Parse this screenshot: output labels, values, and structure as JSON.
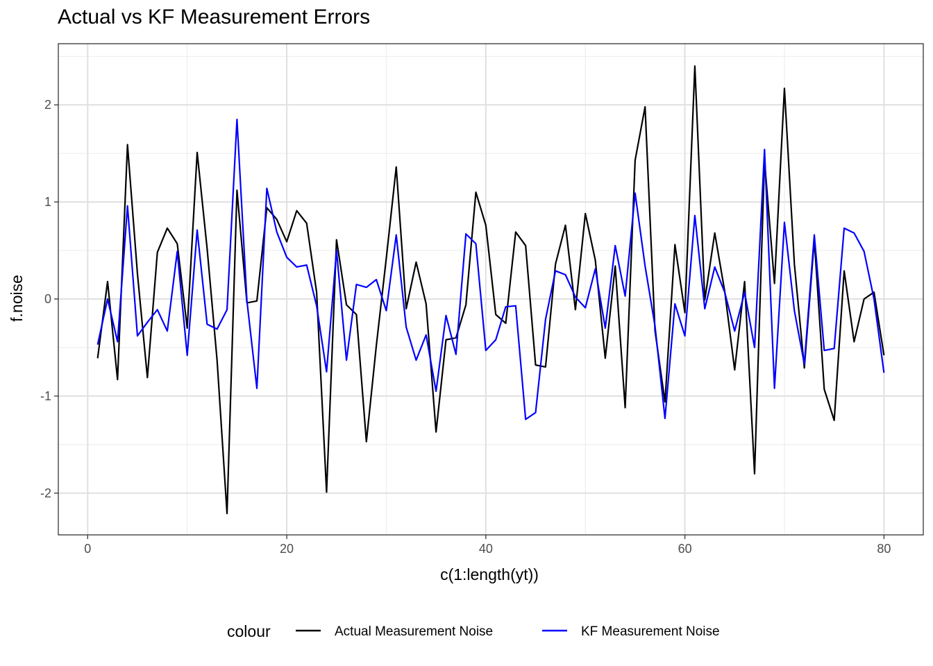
{
  "chart_data": {
    "type": "line",
    "title": "Actual vs KF Measurement Errors",
    "xlabel": "c(1:length(yt))",
    "ylabel": "f.noise",
    "xlim": [
      -2.95,
      83.95
    ],
    "ylim": [
      -2.43,
      2.63
    ],
    "x_ticks": [
      0,
      20,
      40,
      60,
      80
    ],
    "x_tick_labels": [
      "0",
      "20",
      "40",
      "60",
      "80"
    ],
    "y_ticks": [
      -2,
      -1,
      0,
      1,
      2
    ],
    "y_tick_labels": [
      "-2",
      "-1",
      "0",
      "1",
      "2"
    ],
    "grid": true,
    "legend_title": "colour",
    "legend_position": "bottom",
    "x": [
      1,
      2,
      3,
      4,
      5,
      6,
      7,
      8,
      9,
      10,
      11,
      12,
      13,
      14,
      15,
      16,
      17,
      18,
      19,
      20,
      21,
      22,
      23,
      24,
      25,
      26,
      27,
      28,
      29,
      30,
      31,
      32,
      33,
      34,
      35,
      36,
      37,
      38,
      39,
      40,
      41,
      42,
      43,
      44,
      45,
      46,
      47,
      48,
      49,
      50,
      51,
      52,
      53,
      54,
      55,
      56,
      57,
      58,
      59,
      60,
      61,
      62,
      63,
      64,
      65,
      66,
      67,
      68,
      69,
      70,
      71,
      72,
      73,
      74,
      75,
      76,
      77,
      78,
      79,
      80
    ],
    "series": [
      {
        "name": "Actual Measurement Noise",
        "color": "#000000",
        "values": [
          -0.61,
          0.18,
          -0.83,
          1.59,
          0.26,
          -0.81,
          0.48,
          0.73,
          0.57,
          -0.3,
          1.51,
          0.52,
          -0.63,
          -2.21,
          1.12,
          -0.04,
          -0.02,
          0.94,
          0.82,
          0.59,
          0.91,
          0.78,
          0.07,
          -1.99,
          0.61,
          -0.06,
          -0.16,
          -1.47,
          -0.48,
          0.42,
          1.36,
          -0.1,
          0.38,
          -0.05,
          -1.37,
          -0.42,
          -0.4,
          -0.06,
          1.1,
          0.76,
          -0.16,
          -0.25,
          0.69,
          0.55,
          -0.68,
          -0.7,
          0.36,
          0.76,
          -0.11,
          0.88,
          0.4,
          -0.61,
          0.34,
          -1.12,
          1.43,
          1.98,
          -0.33,
          -1.06,
          0.56,
          -0.14,
          2.4,
          -0.01,
          0.68,
          0.08,
          -0.73,
          0.18,
          -1.8,
          1.43,
          0.16,
          2.17,
          0.36,
          -0.71,
          0.61,
          -0.93,
          -1.25,
          0.29,
          -0.44,
          0.0,
          0.07,
          -0.58
        ]
      },
      {
        "name": "KF Measurement Noise",
        "color": "#0000ff",
        "values": [
          -0.47,
          0.0,
          -0.44,
          0.96,
          -0.38,
          -0.24,
          -0.11,
          -0.33,
          0.49,
          -0.58,
          0.71,
          -0.26,
          -0.31,
          -0.11,
          1.85,
          -0.02,
          -0.92,
          1.14,
          0.69,
          0.43,
          0.33,
          0.35,
          -0.07,
          -0.75,
          0.5,
          -0.63,
          0.15,
          0.12,
          0.2,
          -0.12,
          0.66,
          -0.29,
          -0.63,
          -0.37,
          -0.95,
          -0.17,
          -0.57,
          0.67,
          0.57,
          -0.53,
          -0.42,
          -0.08,
          -0.07,
          -1.24,
          -1.17,
          -0.21,
          0.29,
          0.25,
          0.02,
          -0.09,
          0.31,
          -0.3,
          0.55,
          0.03,
          1.09,
          0.34,
          -0.28,
          -1.23,
          -0.05,
          -0.38,
          0.86,
          -0.1,
          0.33,
          0.07,
          -0.33,
          0.07,
          -0.5,
          1.54,
          -0.92,
          0.79,
          -0.12,
          -0.67,
          0.66,
          -0.53,
          -0.51,
          0.73,
          0.68,
          0.49,
          -0.0,
          -0.76
        ]
      }
    ]
  }
}
